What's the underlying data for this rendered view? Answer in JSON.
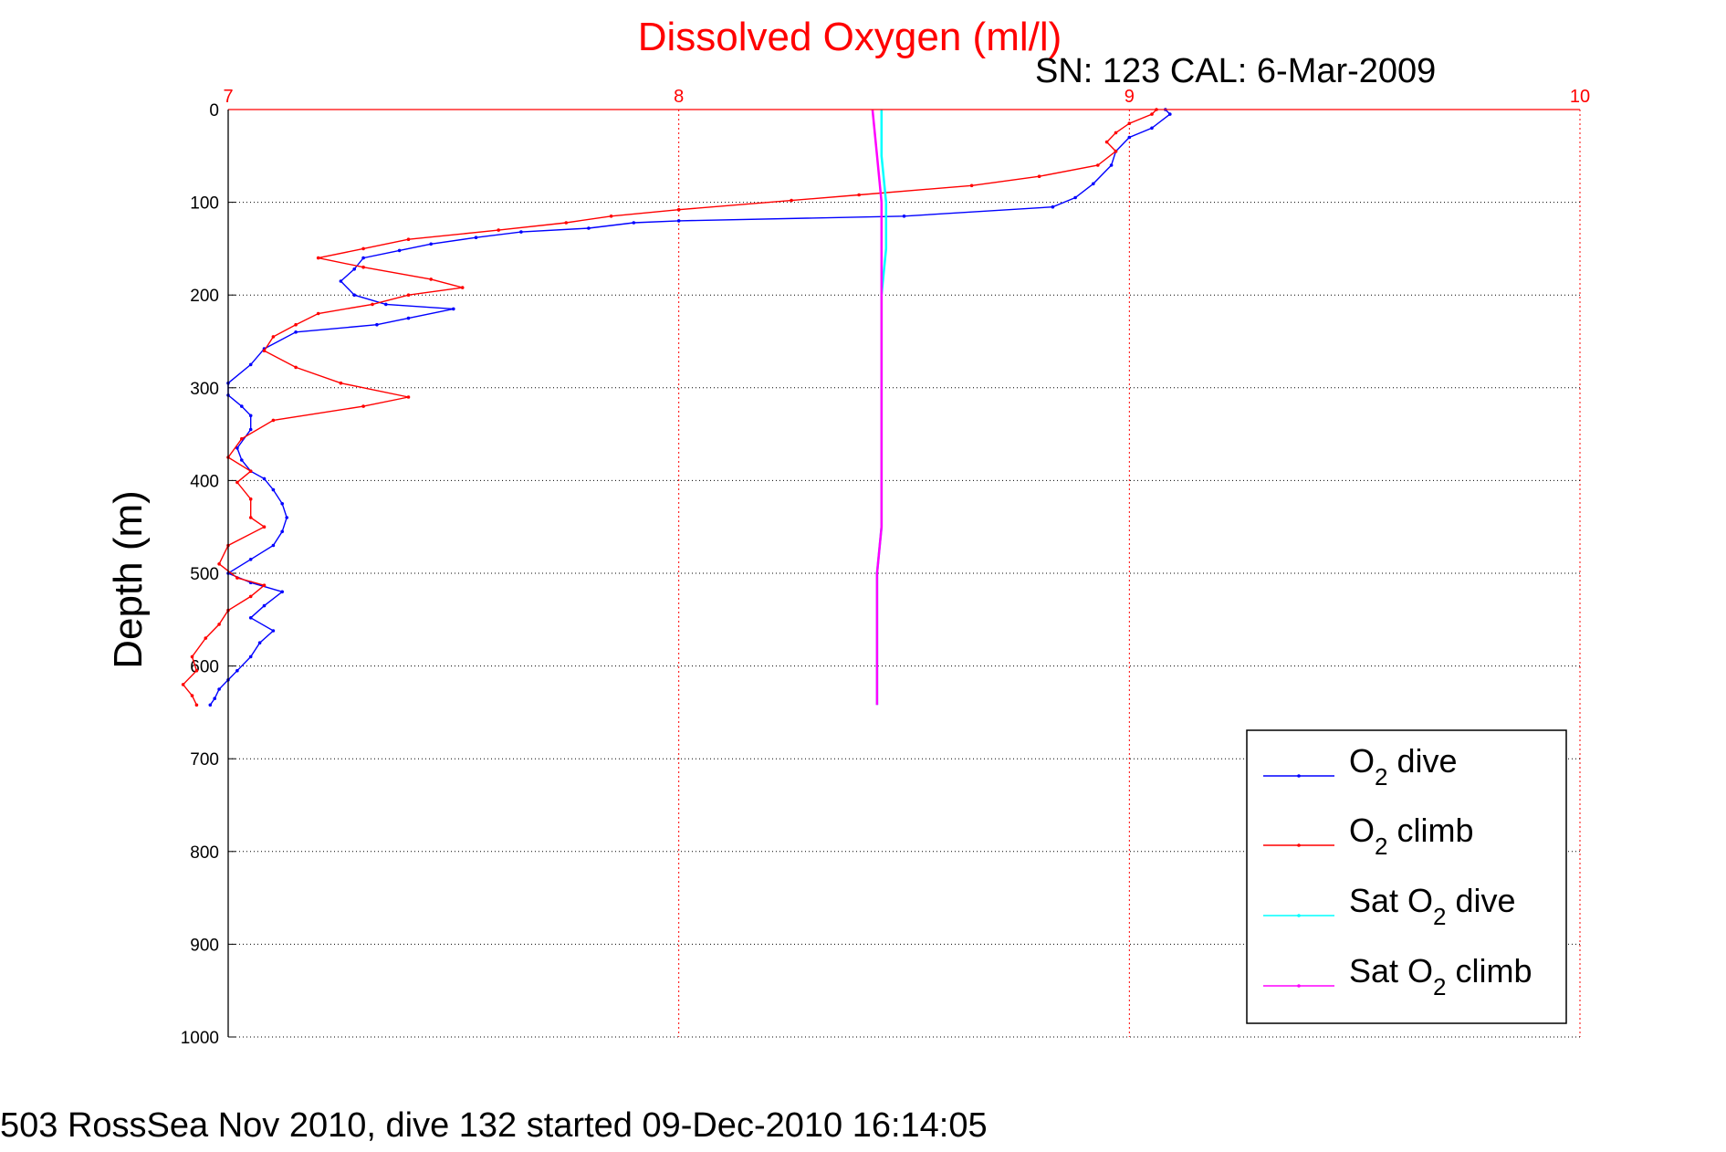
{
  "chart_data": {
    "type": "line",
    "title": "Dissolved Oxygen (ml/l)",
    "subtitle": "SN: 123  CAL: 6-Mar-2009",
    "ylabel": "Depth (m)",
    "xlabel": "",
    "xlim": [
      7,
      10
    ],
    "ylim": [
      0,
      1000
    ],
    "y_reversed": true,
    "x_axis_position": "top",
    "xticks": [
      "7",
      "8",
      "9",
      "10"
    ],
    "yticks": [
      "0",
      "100",
      "200",
      "300",
      "400",
      "500",
      "600",
      "700",
      "800",
      "900",
      "1000"
    ],
    "grid": true,
    "legend_position": "bottom-right",
    "series": [
      {
        "name_main": "O",
        "name_sub": "2",
        "name_rest": " dive",
        "color": "#0000ff",
        "points": [
          [
            9.08,
            0
          ],
          [
            9.09,
            5
          ],
          [
            9.05,
            20
          ],
          [
            9.0,
            30
          ],
          [
            8.97,
            45
          ],
          [
            8.96,
            60
          ],
          [
            8.92,
            80
          ],
          [
            8.88,
            95
          ],
          [
            8.83,
            105
          ],
          [
            8.5,
            115
          ],
          [
            8.0,
            120
          ],
          [
            7.9,
            122
          ],
          [
            7.8,
            128
          ],
          [
            7.65,
            132
          ],
          [
            7.55,
            138
          ],
          [
            7.45,
            145
          ],
          [
            7.38,
            152
          ],
          [
            7.3,
            160
          ],
          [
            7.28,
            172
          ],
          [
            7.25,
            185
          ],
          [
            7.28,
            200
          ],
          [
            7.35,
            210
          ],
          [
            7.5,
            215
          ],
          [
            7.4,
            225
          ],
          [
            7.33,
            232
          ],
          [
            7.15,
            240
          ],
          [
            7.08,
            258
          ],
          [
            7.05,
            275
          ],
          [
            7.0,
            295
          ],
          [
            7.0,
            308
          ],
          [
            7.03,
            320
          ],
          [
            7.05,
            330
          ],
          [
            7.05,
            345
          ],
          [
            7.02,
            365
          ],
          [
            7.03,
            378
          ],
          [
            7.05,
            390
          ],
          [
            7.08,
            398
          ],
          [
            7.1,
            410
          ],
          [
            7.12,
            425
          ],
          [
            7.13,
            440
          ],
          [
            7.12,
            455
          ],
          [
            7.1,
            470
          ],
          [
            7.05,
            485
          ],
          [
            7.0,
            500
          ],
          [
            7.05,
            510
          ],
          [
            7.12,
            520
          ],
          [
            7.08,
            535
          ],
          [
            7.05,
            548
          ],
          [
            7.1,
            562
          ],
          [
            7.07,
            575
          ],
          [
            7.05,
            590
          ],
          [
            7.02,
            605
          ],
          [
            7.0,
            615
          ],
          [
            6.98,
            625
          ],
          [
            6.97,
            635
          ],
          [
            6.96,
            642
          ]
        ]
      },
      {
        "name_main": "O",
        "name_sub": "2",
        "name_rest": " climb",
        "color": "#ff0000",
        "points": [
          [
            9.06,
            0
          ],
          [
            9.05,
            5
          ],
          [
            9.0,
            15
          ],
          [
            8.97,
            25
          ],
          [
            8.95,
            35
          ],
          [
            8.97,
            45
          ],
          [
            8.93,
            60
          ],
          [
            8.8,
            72
          ],
          [
            8.65,
            82
          ],
          [
            8.4,
            92
          ],
          [
            8.25,
            98
          ],
          [
            8.0,
            108
          ],
          [
            7.85,
            115
          ],
          [
            7.75,
            122
          ],
          [
            7.6,
            130
          ],
          [
            7.4,
            140
          ],
          [
            7.3,
            150
          ],
          [
            7.2,
            160
          ],
          [
            7.3,
            170
          ],
          [
            7.45,
            183
          ],
          [
            7.52,
            192
          ],
          [
            7.4,
            200
          ],
          [
            7.32,
            210
          ],
          [
            7.2,
            220
          ],
          [
            7.15,
            232
          ],
          [
            7.1,
            245
          ],
          [
            7.08,
            260
          ],
          [
            7.15,
            278
          ],
          [
            7.25,
            295
          ],
          [
            7.4,
            310
          ],
          [
            7.3,
            320
          ],
          [
            7.1,
            335
          ],
          [
            7.03,
            355
          ],
          [
            7.0,
            375
          ],
          [
            7.05,
            390
          ],
          [
            7.02,
            402
          ],
          [
            7.05,
            420
          ],
          [
            7.05,
            440
          ],
          [
            7.08,
            450
          ],
          [
            7.0,
            470
          ],
          [
            6.98,
            490
          ],
          [
            7.02,
            505
          ],
          [
            7.08,
            513
          ],
          [
            7.05,
            525
          ],
          [
            7.0,
            540
          ],
          [
            6.98,
            555
          ],
          [
            6.95,
            570
          ],
          [
            6.92,
            590
          ],
          [
            6.93,
            605
          ],
          [
            6.9,
            620
          ],
          [
            6.92,
            632
          ],
          [
            6.93,
            642
          ]
        ]
      },
      {
        "name_main": "Sat O",
        "name_sub": "2",
        "name_rest": " dive",
        "color": "#00ffff",
        "points": [
          [
            8.45,
            0
          ],
          [
            8.45,
            50
          ],
          [
            8.46,
            100
          ],
          [
            8.46,
            150
          ],
          [
            8.45,
            200
          ],
          [
            8.45,
            250
          ],
          [
            8.45,
            300
          ],
          [
            8.45,
            350
          ],
          [
            8.45,
            400
          ],
          [
            8.45,
            450
          ],
          [
            8.44,
            500
          ],
          [
            8.44,
            550
          ],
          [
            8.44,
            600
          ],
          [
            8.44,
            642
          ]
        ]
      },
      {
        "name_main": "Sat O",
        "name_sub": "2",
        "name_rest": " climb",
        "color": "#ff00ff",
        "points": [
          [
            8.43,
            0
          ],
          [
            8.44,
            50
          ],
          [
            8.45,
            100
          ],
          [
            8.45,
            150
          ],
          [
            8.45,
            200
          ],
          [
            8.45,
            250
          ],
          [
            8.45,
            300
          ],
          [
            8.45,
            350
          ],
          [
            8.45,
            400
          ],
          [
            8.45,
            450
          ],
          [
            8.44,
            500
          ],
          [
            8.44,
            550
          ],
          [
            8.44,
            600
          ],
          [
            8.44,
            642
          ]
        ]
      }
    ]
  },
  "footer": "503 RossSea Nov 2010, dive 132 started 09-Dec-2010 16:14:05"
}
